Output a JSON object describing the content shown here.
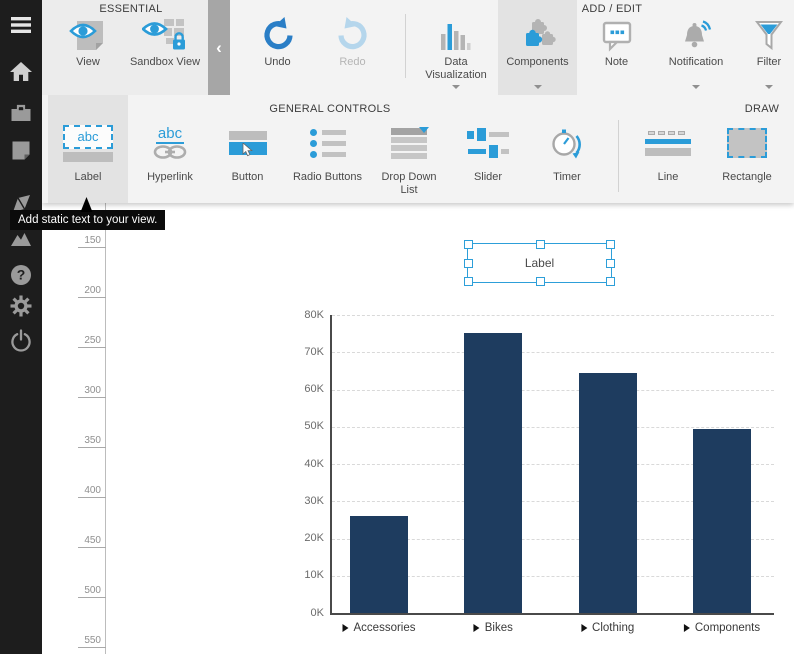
{
  "tooltip": {
    "text": "Add static text to your view."
  },
  "colors": {
    "accent_blue": "#2b9cd8",
    "undo_blue": "#2a7ec6",
    "bar_navy": "#1e3c5f",
    "selection_blue": "#2d9fd9"
  },
  "sidebar": {
    "items": [
      {
        "icon": "menu-icon"
      },
      {
        "icon": "home-icon"
      },
      {
        "icon": "briefcase-icon"
      },
      {
        "icon": "page-icon"
      },
      {
        "icon": "design-pen-icon"
      },
      {
        "icon": "gallery-icon"
      },
      {
        "icon": "help-icon"
      },
      {
        "icon": "settings-icon"
      },
      {
        "icon": "power-icon"
      }
    ]
  },
  "ribbon": {
    "collapse_chevron": "‹",
    "icon_text": {
      "abc": "abc"
    },
    "row1": {
      "headers": {
        "essential": "ESSENTIAL",
        "add_edit": "ADD / EDIT"
      },
      "items": [
        {
          "label": "View"
        },
        {
          "label": "Sandbox View"
        },
        {
          "label": "Undo"
        },
        {
          "label": "Redo",
          "disabled": true
        },
        {
          "label": "Data Visualization",
          "caret": true
        },
        {
          "label": "Components",
          "caret": true,
          "selected": true
        },
        {
          "label": "Note"
        },
        {
          "label": "Notification",
          "caret": true
        },
        {
          "label": "Filter",
          "caret": true
        }
      ]
    },
    "row2": {
      "headers": {
        "general_controls": "GENERAL CONTROLS",
        "draw": "DRAW"
      },
      "items": [
        {
          "label": "Label",
          "selected": true
        },
        {
          "label": "Hyperlink"
        },
        {
          "label": "Button"
        },
        {
          "label": "Radio Buttons"
        },
        {
          "label": "Drop Down List"
        },
        {
          "label": "Slider"
        },
        {
          "label": "Timer"
        },
        {
          "label": "Line"
        },
        {
          "label": "Rectangle"
        }
      ]
    }
  },
  "canvas": {
    "ruler": {
      "values": [
        150,
        200,
        250,
        300,
        350,
        400,
        450,
        500,
        550
      ]
    },
    "label_component": {
      "text": "Label"
    }
  },
  "chart_data": {
    "type": "bar",
    "categories": [
      "Accessories",
      "Bikes",
      "Clothing",
      "Components"
    ],
    "values": [
      26000,
      75300,
      64500,
      49300
    ],
    "title": "",
    "xlabel": "",
    "ylabel": "",
    "ylim": [
      0,
      80000
    ],
    "ytick_labels": [
      "0K",
      "10K",
      "20K",
      "30K",
      "40K",
      "50K",
      "60K",
      "70K",
      "80K"
    ],
    "grid": true,
    "legend": null,
    "bar_color": "#1e3c5f"
  }
}
